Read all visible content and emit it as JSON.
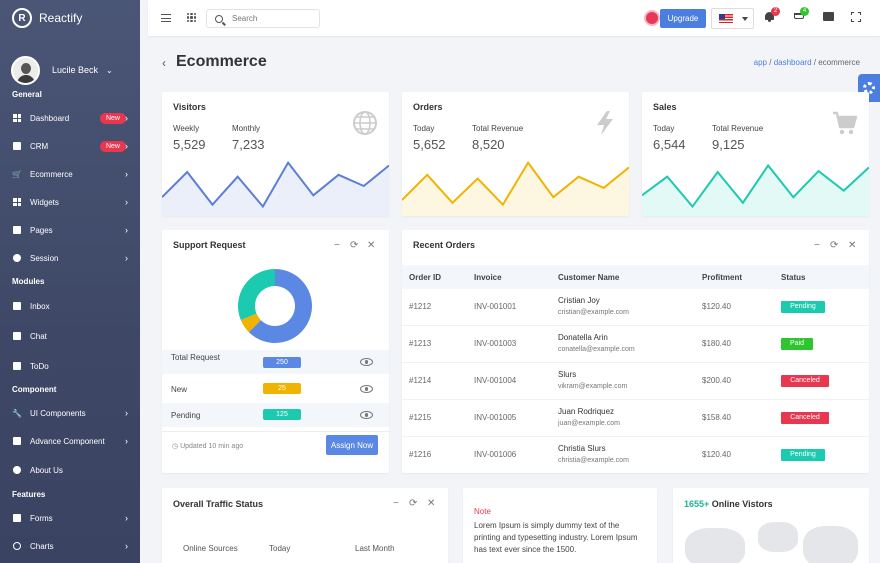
{
  "brand": {
    "name": "Reactify",
    "logo_letter": "R"
  },
  "profile": {
    "name": "Lucile Beck"
  },
  "sidebar": {
    "sections": [
      {
        "title": "General"
      },
      {
        "title": "Modules"
      },
      {
        "title": "Component"
      },
      {
        "title": "Features"
      }
    ],
    "items": [
      {
        "label": "Dashboard",
        "badge": "New",
        "icon": "dashboard-icon"
      },
      {
        "label": "CRM",
        "badge": "New",
        "icon": "crm-icon"
      },
      {
        "label": "Ecommerce",
        "icon": "cart-icon"
      },
      {
        "label": "Widgets",
        "icon": "widgets-icon"
      },
      {
        "label": "Pages",
        "icon": "pages-icon"
      },
      {
        "label": "Session",
        "icon": "session-icon"
      },
      {
        "label": "Inbox",
        "icon": "inbox-icon"
      },
      {
        "label": "Chat",
        "icon": "chat-icon"
      },
      {
        "label": "ToDo",
        "icon": "todo-icon"
      },
      {
        "label": "UI Components",
        "icon": "wrench-icon"
      },
      {
        "label": "Advance Component",
        "icon": "component-icon"
      },
      {
        "label": "About Us",
        "icon": "info-icon"
      },
      {
        "label": "Forms",
        "icon": "forms-icon"
      },
      {
        "label": "Charts",
        "icon": "charts-icon"
      }
    ]
  },
  "topbar": {
    "search_placeholder": "Search",
    "upgrade_label": "Upgrade",
    "notifications_count": "2",
    "cart_count": "4"
  },
  "page": {
    "title": "Ecommerce",
    "breadcrumb": [
      "app",
      "dashboard",
      "ecommerce"
    ]
  },
  "stats": {
    "visitors": {
      "title": "Visitors",
      "label1": "Weekly",
      "value1": "5,529",
      "label2": "Monthly",
      "value2": "7,233",
      "color": "#5b7fd6",
      "trend": [
        18,
        45,
        10,
        40,
        8,
        55,
        20,
        42,
        30,
        52
      ]
    },
    "orders": {
      "title": "Orders",
      "label1": "Today",
      "value1": "5,652",
      "label2": "Total Revenue",
      "value2": "8,520",
      "color": "#f0b400",
      "trend": [
        15,
        42,
        12,
        38,
        10,
        55,
        18,
        40,
        28,
        50
      ]
    },
    "sales": {
      "title": "Sales",
      "label1": "Today",
      "value1": "6,544",
      "label2": "Total Revenue",
      "value2": "9,125",
      "color": "#1ccab0",
      "trend": [
        20,
        40,
        8,
        45,
        12,
        52,
        18,
        46,
        25,
        50
      ]
    }
  },
  "support": {
    "title": "Support Request",
    "rows": [
      {
        "label": "Total Request",
        "value": "250",
        "color": "#5b88e3"
      },
      {
        "label": "New",
        "value": "25",
        "color": "#f0b400"
      },
      {
        "label": "Pending",
        "value": "125",
        "color": "#1ccab0"
      }
    ],
    "updated": "Updated 10 min ago",
    "assign_label": "Assign Now",
    "donut": [
      {
        "value": 250,
        "color": "#5b88e3"
      },
      {
        "value": 25,
        "color": "#f0b400"
      },
      {
        "value": 125,
        "color": "#1ccab0"
      }
    ]
  },
  "orders": {
    "title": "Recent Orders",
    "columns": [
      "Order ID",
      "Invoice",
      "Customer Name",
      "Profitment",
      "Status"
    ],
    "rows": [
      {
        "id": "#1212",
        "invoice": "INV-001001",
        "name": "Cristian Joy",
        "email": "cristian@example.com",
        "amount": "$120.40",
        "status": "Pending",
        "status_color": "#1ccab0"
      },
      {
        "id": "#1213",
        "invoice": "INV-001003",
        "name": "Donatella Arin",
        "email": "conatella@example.com",
        "amount": "$180.40",
        "status": "Paid",
        "status_color": "#2ec52e"
      },
      {
        "id": "#1214",
        "invoice": "INV-001004",
        "name": "Slurs",
        "email": "vikram@example.com",
        "amount": "$200.40",
        "status": "Canceled",
        "status_color": "#e8384f"
      },
      {
        "id": "#1215",
        "invoice": "INV-001005",
        "name": "Juan Rodriquez",
        "email": "juan@example.com",
        "amount": "$158.40",
        "status": "Canceled",
        "status_color": "#e8384f"
      },
      {
        "id": "#1216",
        "invoice": "INV-001006",
        "name": "Christia Slurs",
        "email": "christia@example.com",
        "amount": "$120.40",
        "status": "Pending",
        "status_color": "#1ccab0"
      }
    ]
  },
  "traffic": {
    "title": "Overall Traffic Status",
    "label1": "Online Sources",
    "label2": "Today",
    "label3": "Last Month"
  },
  "note": {
    "title": "Note",
    "text": "Lorem Ipsum is simply dummy text of the printing and typesetting industry. Lorem Ipsum has text ever since the 1500."
  },
  "online": {
    "count": "1655+",
    "label": "Online Vistors"
  }
}
